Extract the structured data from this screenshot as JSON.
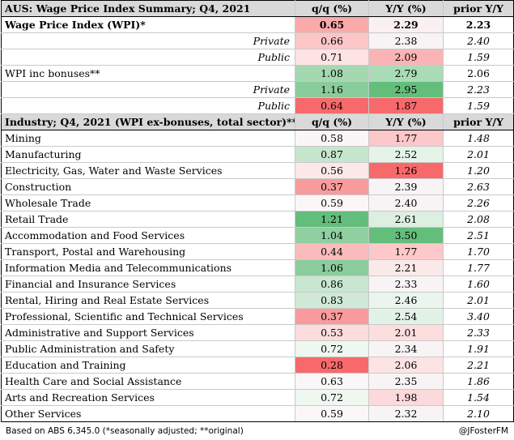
{
  "colors": {
    "red_strong": "#f8696b",
    "red_mid": "#fbaaab",
    "red_light": "#fde2e3",
    "green_strong": "#63be7b",
    "green_mid": "#a9dbb6",
    "green_light": "#ddf0e2",
    "neutral": "#f8f4f5",
    "header_bg": "#d9d9d9"
  },
  "summary": {
    "header": {
      "title": "AUS: Wage Price Index Summary; Q4, 2021",
      "qq": "q/q (%)",
      "yy": "Y/Y (%)",
      "prior": "prior Y/Y"
    },
    "rows": [
      {
        "label": "Wage Price Index (WPI)*",
        "qq": "0.65",
        "yy": "2.29",
        "prior": "2.23"
      },
      {
        "label": "Private",
        "qq": "0.66",
        "yy": "2.38",
        "prior": "2.40"
      },
      {
        "label": "Public",
        "qq": "0.71",
        "yy": "2.09",
        "prior": "1.59"
      },
      {
        "label": "WPI inc bonuses**",
        "qq": "1.08",
        "yy": "2.79",
        "prior": "2.06"
      },
      {
        "label": "Private",
        "qq": "1.16",
        "yy": "2.95",
        "prior": "2.23"
      },
      {
        "label": "Public",
        "qq": "0.64",
        "yy": "1.87",
        "prior": "1.59"
      }
    ]
  },
  "industry": {
    "header": {
      "title": "Industry; Q4, 2021 (WPI ex-bonuses, total sector)**",
      "qq": "q/q (%)",
      "yy": "Y/Y (%)",
      "prior": "prior Y/Y"
    },
    "rows": [
      {
        "label": "Mining",
        "qq": "0.58",
        "yy": "1.77",
        "prior": "1.48"
      },
      {
        "label": "Manufacturing",
        "qq": "0.87",
        "yy": "2.52",
        "prior": "2.01"
      },
      {
        "label": "Electricity, Gas, Water and Waste Services",
        "qq": "0.56",
        "yy": "1.26",
        "prior": "1.20"
      },
      {
        "label": "Construction",
        "qq": "0.37",
        "yy": "2.39",
        "prior": "2.63"
      },
      {
        "label": "Wholesale Trade",
        "qq": "0.59",
        "yy": "2.40",
        "prior": "2.26"
      },
      {
        "label": "Retail Trade",
        "qq": "1.21",
        "yy": "2.61",
        "prior": "2.08"
      },
      {
        "label": "Accommodation and Food Services",
        "qq": "1.04",
        "yy": "3.50",
        "prior": "2.51"
      },
      {
        "label": "Transport, Postal and Warehousing",
        "qq": "0.44",
        "yy": "1.77",
        "prior": "1.70"
      },
      {
        "label": "Information Media and Telecommunications",
        "qq": "1.06",
        "yy": "2.21",
        "prior": "1.77"
      },
      {
        "label": "Financial and Insurance Services",
        "qq": "0.86",
        "yy": "2.33",
        "prior": "1.60"
      },
      {
        "label": "Rental, Hiring and Real Estate Services",
        "qq": "0.83",
        "yy": "2.46",
        "prior": "2.01"
      },
      {
        "label": "Professional, Scientific and Technical Services",
        "qq": "0.37",
        "yy": "2.54",
        "prior": "3.40"
      },
      {
        "label": "Administrative and Support Services",
        "qq": "0.53",
        "yy": "2.01",
        "prior": "2.33"
      },
      {
        "label": "Public Administration and Safety",
        "qq": "0.72",
        "yy": "2.34",
        "prior": "1.91"
      },
      {
        "label": "Education and Training",
        "qq": "0.28",
        "yy": "2.06",
        "prior": "2.21"
      },
      {
        "label": "Health Care and Social Assistance",
        "qq": "0.63",
        "yy": "2.35",
        "prior": "1.86"
      },
      {
        "label": "Arts and Recreation Services",
        "qq": "0.72",
        "yy": "1.98",
        "prior": "1.54"
      },
      {
        "label": "Other Services",
        "qq": "0.59",
        "yy": "2.32",
        "prior": "2.10"
      }
    ]
  },
  "footer": {
    "source": "Based on ABS 6,345.0 (*seasonally adjusted; **original)",
    "credit": "@JFosterFM"
  }
}
